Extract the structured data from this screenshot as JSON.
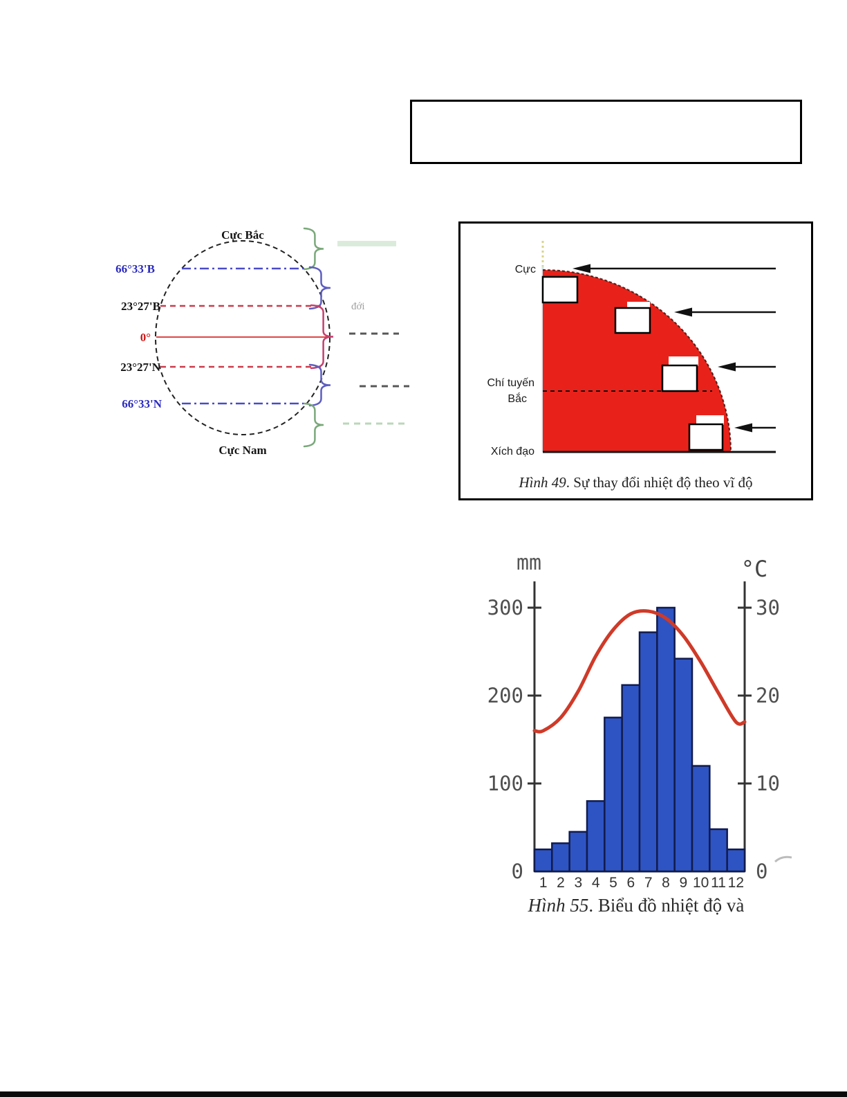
{
  "page": {
    "background": "#ffffff",
    "bottom_rule_color": "#0a0a0a"
  },
  "answer_box": {
    "content": ""
  },
  "globe": {
    "north_pole": "Cực Bắc",
    "south_pole": "Cực Nam",
    "lat_labels": [
      "66°33'B",
      "23°27'B",
      "0°",
      "23°27'N",
      "66°33'N"
    ],
    "lat_label_colors": [
      "#2a2ac0",
      "#141414",
      "#cc1414",
      "#141414",
      "#2a2ac0"
    ],
    "remnant_text": "đới",
    "brace_colors": {
      "polar": "#7aa87a",
      "temperate": "#5d5dc0",
      "tropical": "#c4416f"
    }
  },
  "fig49": {
    "pole_label": "Cực",
    "tropic_label_line1": "Chí tuyến",
    "tropic_label_line2": "Bắc",
    "equator_label": "Xích đạo",
    "caption_italic": "Hình 49",
    "caption_rest": ". Sự thay đổi nhiệt độ theo vĩ độ",
    "fill_color": "#e8221a",
    "blank_box_count": 4
  },
  "fig55": {
    "caption_italic": "Hình 55",
    "caption_rest": ". Biểu đồ nhiệt độ và",
    "unit_left": "mm",
    "unit_right": "°C"
  },
  "chart_data": {
    "type": "bar+line",
    "title": "Hình 55. Biểu đồ nhiệt độ và",
    "categories": [
      1,
      2,
      3,
      4,
      5,
      6,
      7,
      8,
      9,
      10,
      11,
      12
    ],
    "series": [
      {
        "name": "precipitation_mm",
        "type": "bar",
        "axis": "left",
        "color": "#2e54c4",
        "values": [
          25,
          32,
          45,
          80,
          175,
          212,
          272,
          300,
          242,
          120,
          48,
          25
        ]
      },
      {
        "name": "temperature_c",
        "type": "line",
        "axis": "right",
        "color": "#cf3a28",
        "values": [
          16,
          17.5,
          20.5,
          24.5,
          27.5,
          29.3,
          29.6,
          28.8,
          26.8,
          23.8,
          20.3,
          17
        ]
      }
    ],
    "left_axis": {
      "label": "mm",
      "ticks": [
        0,
        100,
        200,
        300
      ],
      "range": [
        0,
        330
      ]
    },
    "right_axis": {
      "label": "°C",
      "ticks": [
        0,
        10,
        20,
        30
      ],
      "range": [
        0,
        33
      ]
    },
    "grid": false,
    "legend": false
  }
}
